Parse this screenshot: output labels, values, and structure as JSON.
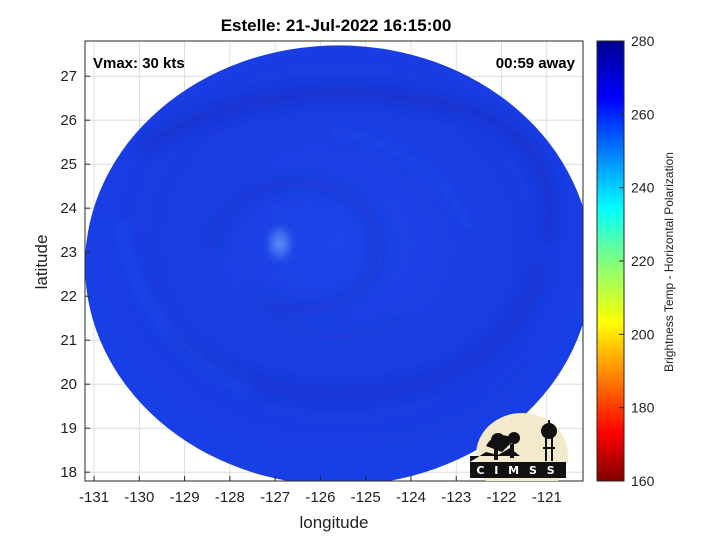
{
  "title": "Estelle: 21-Jul-2022 16:15:00",
  "annotations": {
    "vmax": "Vmax: 30 kts",
    "time_away": "00:59 away"
  },
  "axes": {
    "xlabel": "longitude",
    "ylabel": "latitude",
    "xlim": [
      -131.2,
      -120.2
    ],
    "ylim": [
      17.8,
      27.8
    ],
    "xticks": [
      "-131",
      "-130",
      "-129",
      "-128",
      "-127",
      "-126",
      "-125",
      "-124",
      "-123",
      "-122",
      "-121"
    ],
    "yticks": [
      "18",
      "19",
      "20",
      "21",
      "22",
      "23",
      "24",
      "25",
      "26",
      "27"
    ]
  },
  "colorbar": {
    "label": "Brightness Temp - Horizontal Polarization",
    "ticks": [
      "160",
      "180",
      "200",
      "220",
      "240",
      "260",
      "280"
    ],
    "range": [
      160,
      280
    ],
    "colormap": "jet"
  },
  "swath": {
    "center_lon": -125.6,
    "center_lat": 22.7,
    "radius_lon": 5.6,
    "radius_lat": 5.0,
    "typical_value": 265,
    "eye_lon": -126.9,
    "eye_lat": 23.2
  },
  "logo": {
    "text": "CIMSS",
    "display": "C I M S S"
  },
  "colors": {
    "swath_base": "#1c3fe6",
    "swath_dark": "#1630c4",
    "eye_light": "#4a7cf2"
  }
}
